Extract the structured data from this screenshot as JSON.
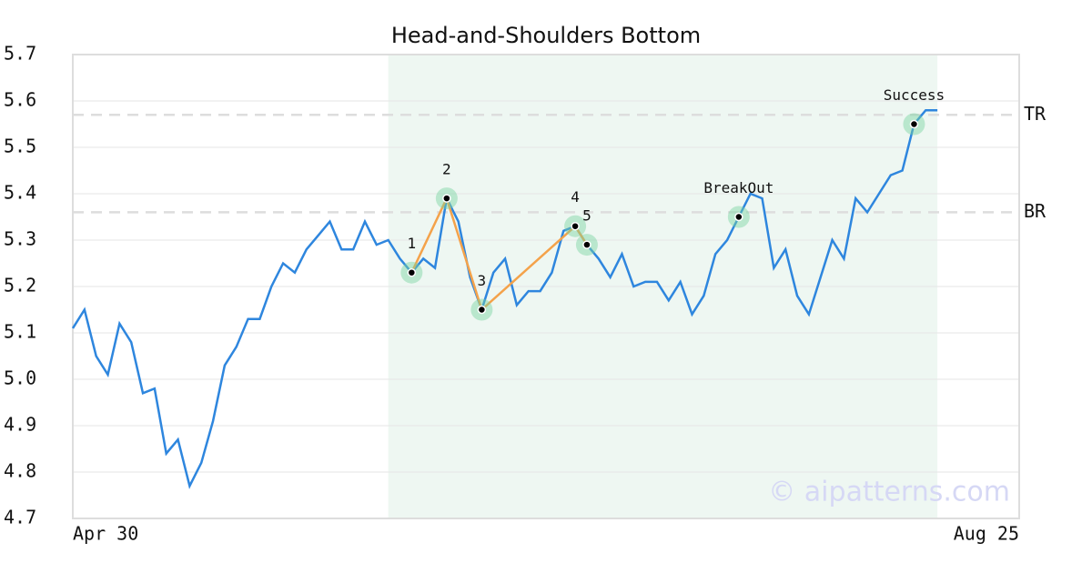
{
  "chart_data": {
    "type": "line",
    "title": "Head-and-Shoulders Bottom",
    "x": [
      0,
      1,
      2,
      3,
      4,
      5,
      6,
      7,
      8,
      9,
      10,
      11,
      12,
      13,
      14,
      15,
      16,
      17,
      18,
      19,
      20,
      21,
      22,
      23,
      24,
      25,
      26,
      27,
      28,
      29,
      30,
      31,
      32,
      33,
      34,
      35,
      36,
      37,
      38,
      39,
      40,
      41,
      42,
      43,
      44,
      45,
      46,
      47,
      48,
      49,
      50,
      51,
      52,
      53,
      54,
      55,
      56,
      57,
      58,
      59,
      60,
      61,
      62,
      63,
      64,
      65,
      66,
      67,
      68,
      69,
      70,
      71,
      72,
      73,
      74
    ],
    "values": [
      5.11,
      5.15,
      5.05,
      5.01,
      5.12,
      5.08,
      4.97,
      4.98,
      4.84,
      4.87,
      4.77,
      4.82,
      4.91,
      5.03,
      5.07,
      5.13,
      5.13,
      5.2,
      5.25,
      5.23,
      5.28,
      5.31,
      5.34,
      5.28,
      5.28,
      5.34,
      5.29,
      5.3,
      5.26,
      5.23,
      5.26,
      5.24,
      5.39,
      5.34,
      5.22,
      5.15,
      5.23,
      5.26,
      5.16,
      5.19,
      5.19,
      5.23,
      5.32,
      5.33,
      5.29,
      5.26,
      5.22,
      5.27,
      5.2,
      5.21,
      5.21,
      5.17,
      5.21,
      5.14,
      5.18,
      5.27,
      5.3,
      5.35,
      5.4,
      5.39,
      5.24,
      5.28,
      5.18,
      5.14,
      5.22,
      5.3,
      5.26,
      5.39,
      5.36,
      5.4,
      5.44,
      5.45,
      5.55,
      5.58,
      5.58
    ],
    "color": "#2e86de",
    "xlim": [
      0,
      81
    ],
    "xticks": [
      {
        "value": 0,
        "label": "Apr 30"
      },
      {
        "value": 81,
        "label": "Aug 25"
      }
    ],
    "ylim": [
      4.7,
      5.7
    ],
    "yticks": [
      4.7,
      4.8,
      4.9,
      {
        "value": 5,
        "label": "5.0"
      },
      5.1,
      5.2,
      5.3,
      5.4,
      5.5,
      5.6,
      5.7
    ],
    "grid": true,
    "highlight": [
      27,
      74
    ],
    "pattern_color": "#f4a24a",
    "pattern_points": [
      {
        "label": "1",
        "x": 29,
        "y": 5.23
      },
      {
        "label": "2",
        "x": 32,
        "y": 5.39
      },
      {
        "label": "3",
        "x": 35,
        "y": 5.15
      },
      {
        "label": "4",
        "x": 43,
        "y": 5.33
      },
      {
        "label": "5",
        "x": 44,
        "y": 5.29
      }
    ],
    "annotations": [
      {
        "label": "BreakOut",
        "x": 57,
        "y": 5.35
      },
      {
        "label": "Success",
        "x": 72,
        "y": 5.55
      }
    ],
    "levels": [
      {
        "label": "TR",
        "value": 5.57
      },
      {
        "label": "BR",
        "value": 5.36
      }
    ],
    "watermark": "© aipatterns.com"
  }
}
